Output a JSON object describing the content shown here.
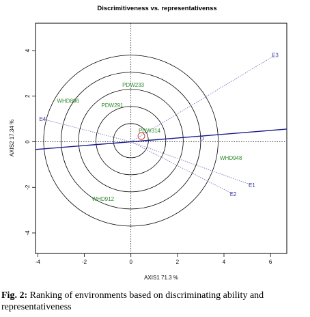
{
  "caption": {
    "label": "Fig. 2:",
    "text": "Ranking of environments based on discriminating ability and representativeness"
  },
  "chart_data": {
    "type": "scatter",
    "title": "Discrimitiveness vs. representativenss",
    "xlabel": "AXIS1 71.3 %",
    "ylabel": "AXIS2 17.34 %",
    "xlim": [
      -4.1,
      6.7
    ],
    "ylim": [
      -4.9,
      5.2
    ],
    "xticks": [
      "-4",
      "-2",
      "0",
      "2",
      "4",
      "6"
    ],
    "yticks": [
      "-4",
      "-2",
      "0",
      "2",
      "4"
    ],
    "genotypes": [
      {
        "name": "PDW233",
        "x": 0.1,
        "y": 2.5
      },
      {
        "name": "WHD896",
        "x": -2.7,
        "y": 1.8
      },
      {
        "name": "PDW291",
        "x": -0.8,
        "y": 1.6
      },
      {
        "name": "PDW314",
        "x": 0.8,
        "y": 0.5
      },
      {
        "name": "WHD948",
        "x": 4.3,
        "y": -0.7
      },
      {
        "name": "WHD912",
        "x": -1.2,
        "y": -2.5
      }
    ],
    "environments": [
      {
        "name": "E3",
        "x": 6.2,
        "y": 3.8
      },
      {
        "name": "E4",
        "x": -3.8,
        "y": 1.0
      },
      {
        "name": "E1",
        "x": 5.2,
        "y": -1.9
      },
      {
        "name": "E2",
        "x": 4.4,
        "y": -2.3
      }
    ],
    "aec_axis": {
      "slope": 0.083
    },
    "circle_center": [
      0,
      0.05
    ],
    "circle_radii": [
      0.75,
      1.5,
      2.25,
      3.0,
      3.75
    ],
    "extra_marks": [
      {
        "label": "O",
        "x": 3.05,
        "y": 0.15
      }
    ],
    "colors": {
      "genotype": "#2e8b2e",
      "environment": "#3a3aa0",
      "aec_line": "#1a1a8c",
      "env_vector": "#6a6ab0",
      "circle": "#000000",
      "origin_dot": "#cc0000"
    }
  }
}
